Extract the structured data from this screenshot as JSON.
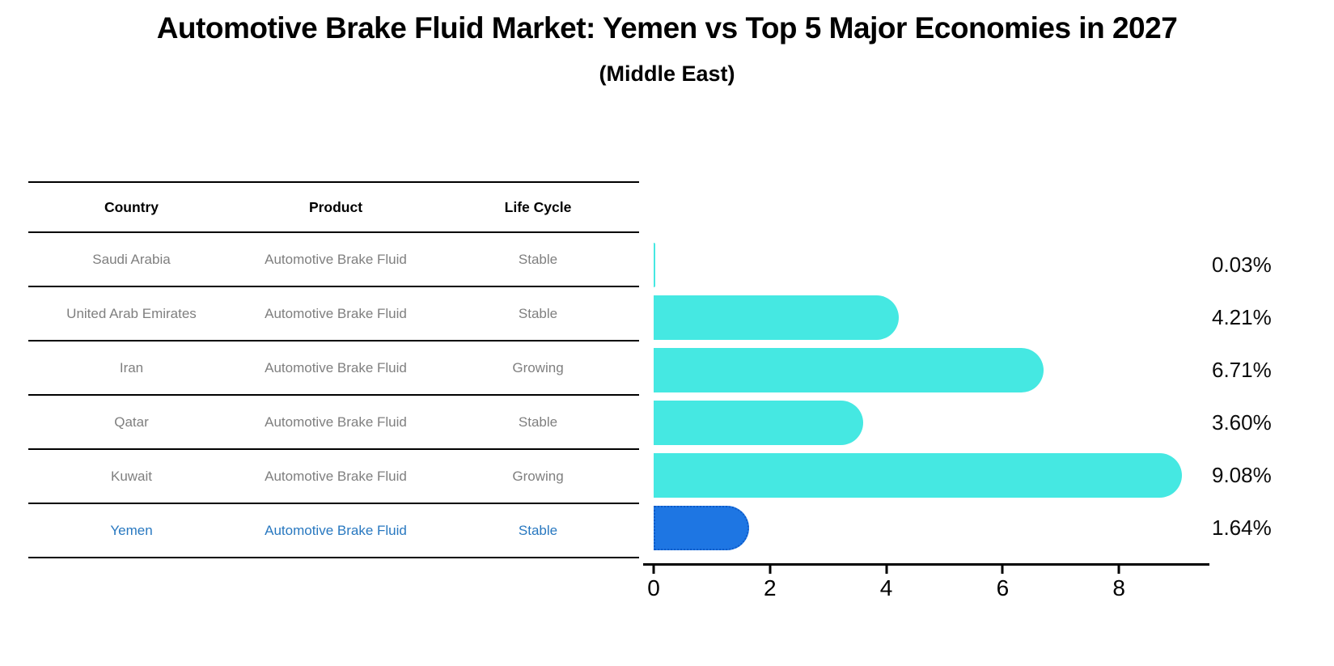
{
  "title": "Automotive Brake Fluid Market: Yemen vs Top 5 Major Economies in 2027",
  "subtitle": "(Middle East)",
  "table": {
    "headers": [
      "Country",
      "Product",
      "Life Cycle"
    ],
    "rows": [
      {
        "country": "Saudi Arabia",
        "product": "Automotive Brake Fluid",
        "life_cycle": "Stable",
        "highlight": false
      },
      {
        "country": "United Arab Emirates",
        "product": "Automotive Brake Fluid",
        "life_cycle": "Stable",
        "highlight": false
      },
      {
        "country": "Iran",
        "product": "Automotive Brake Fluid",
        "life_cycle": "Growing",
        "highlight": false
      },
      {
        "country": "Qatar",
        "product": "Automotive Brake Fluid",
        "life_cycle": "Stable",
        "highlight": false
      },
      {
        "country": "Kuwait",
        "product": "Automotive Brake Fluid",
        "life_cycle": "Growing",
        "highlight": false
      },
      {
        "country": "Yemen",
        "product": "Automotive Brake Fluid",
        "life_cycle": "Stable",
        "highlight": true
      }
    ]
  },
  "chart_data": {
    "type": "bar",
    "orientation": "horizontal",
    "title": "Automotive Brake Fluid Market: Yemen vs Top 5 Major Economies in 2027",
    "subtitle": "(Middle East)",
    "categories": [
      "Saudi Arabia",
      "United Arab Emirates",
      "Iran",
      "Qatar",
      "Kuwait",
      "Yemen"
    ],
    "values": [
      0.03,
      4.21,
      6.71,
      3.6,
      9.08,
      1.64
    ],
    "value_labels": [
      "0.03%",
      "4.21%",
      "6.71%",
      "3.60%",
      "9.08%",
      "1.64%"
    ],
    "unit": "%",
    "xlim": [
      0,
      9.5
    ],
    "x_ticks": [
      0,
      2,
      4,
      6,
      8
    ],
    "grid": false,
    "legend": false,
    "highlight_index": 5,
    "highlight_category": "Yemen"
  },
  "colors": {
    "bar": "#45E8E2",
    "highlight_bar": "#1E76E3",
    "highlight_bar_border": "#0E5BC8",
    "highlight_text": "#2878C0",
    "table_text": "#7F7F7F",
    "header_text": "#000000",
    "axis": "#000000",
    "background": "#FFFFFF"
  }
}
